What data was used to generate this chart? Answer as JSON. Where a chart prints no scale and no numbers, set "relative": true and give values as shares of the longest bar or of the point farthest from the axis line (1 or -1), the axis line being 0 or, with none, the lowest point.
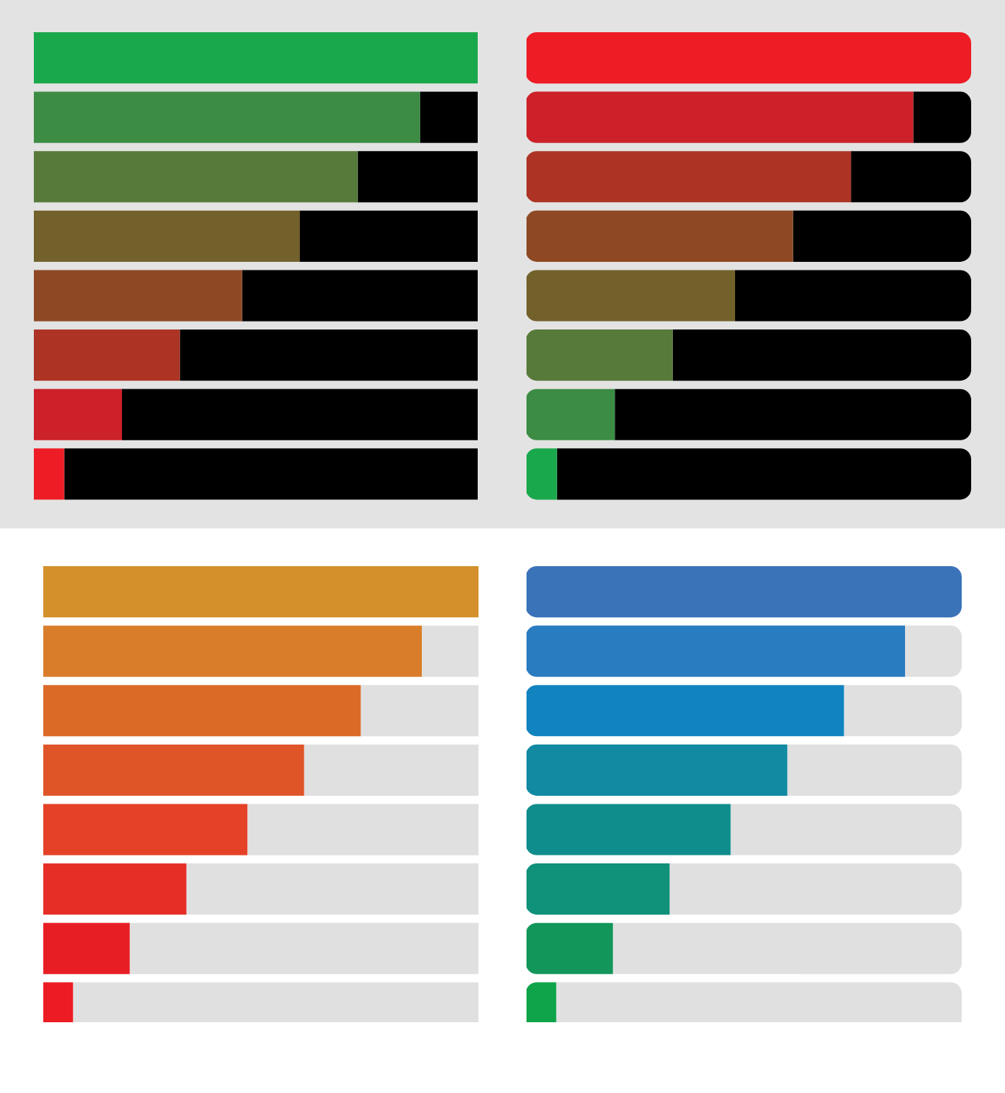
{
  "chart_data": [
    {
      "type": "bar",
      "orientation": "horizontal",
      "stacked": true,
      "relative": true,
      "categories": [
        null,
        null,
        null,
        null,
        null,
        null,
        null,
        null
      ],
      "series": [
        {
          "colors": [
            "#1aa84c",
            "#3c8c44",
            "#577a3a",
            "#72612b",
            "#8e4924",
            "#ad3325",
            "#cc2129",
            "#ee1c25"
          ],
          "values": [
            1,
            0.87,
            0.73,
            0.6,
            0.47,
            0.33,
            0.2,
            0.07
          ]
        },
        {
          "color": "#000000",
          "values": [
            0,
            0.13,
            0.27,
            0.4,
            0.53,
            0.67,
            0.8,
            0.93
          ]
        }
      ]
    },
    {
      "type": "bar",
      "orientation": "horizontal",
      "stacked": true,
      "relative": true,
      "categories": [
        null,
        null,
        null,
        null,
        null,
        null,
        null,
        null
      ],
      "series": [
        {
          "colors": [
            "#ee1c25",
            "#cc2129",
            "#ad3325",
            "#8e4924",
            "#72612b",
            "#577a3a",
            "#3c8c44",
            "#1aa84c"
          ],
          "values": [
            1,
            0.87,
            0.73,
            0.6,
            0.47,
            0.33,
            0.2,
            0.07
          ]
        },
        {
          "color": "#000000",
          "values": [
            0,
            0.13,
            0.27,
            0.4,
            0.53,
            0.67,
            0.8,
            0.93
          ]
        }
      ]
    },
    {
      "type": "bar",
      "orientation": "horizontal",
      "stacked": true,
      "relative": true,
      "categories": [
        null,
        null,
        null,
        null,
        null,
        null,
        null,
        null
      ],
      "series": [
        {
          "colors": [
            "#d4902b",
            "#d97d2a",
            "#dc6a27",
            "#e05528",
            "#e44127",
            "#e62e27",
            "#e81e25",
            "#ec1c24"
          ],
          "values": [
            1,
            0.87,
            0.73,
            0.6,
            0.47,
            0.33,
            0.2,
            0.07
          ]
        },
        {
          "color": "#e0e0e0",
          "values": [
            0,
            0.13,
            0.27,
            0.4,
            0.53,
            0.67,
            0.8,
            0.93
          ]
        }
      ]
    },
    {
      "type": "bar",
      "orientation": "horizontal",
      "stacked": true,
      "relative": true,
      "categories": [
        null,
        null,
        null,
        null,
        null,
        null,
        null,
        null
      ],
      "series": [
        {
          "colors": [
            "#3b73b9",
            "#2a7cc1",
            "#1183bf",
            "#118aa2",
            "#0e8d8c",
            "#0f917a",
            "#12965a",
            "#0ea44a"
          ],
          "values": [
            1,
            0.87,
            0.73,
            0.6,
            0.47,
            0.33,
            0.2,
            0.07
          ]
        },
        {
          "color": "#e0e0e0",
          "values": [
            0,
            0.13,
            0.27,
            0.4,
            0.53,
            0.67,
            0.8,
            0.93
          ]
        }
      ]
    }
  ]
}
